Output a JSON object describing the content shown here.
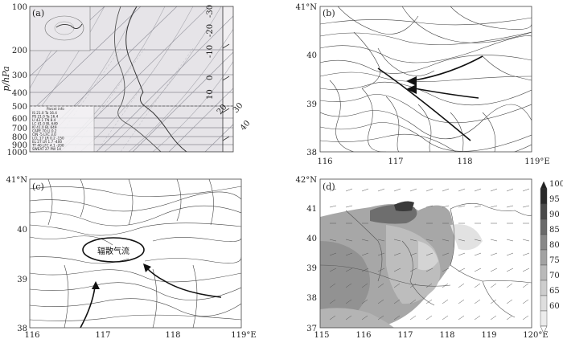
{
  "panels": {
    "a": {
      "label": "(a)",
      "ylabel": "p/hPa",
      "pressure_ticks": [
        "100",
        "200",
        "300",
        "400",
        "500",
        "600",
        "700",
        "800",
        "900",
        "1000"
      ],
      "temp_ticks": [
        "-30",
        "-20",
        "-10",
        "0",
        "10",
        "20",
        "30",
        "40"
      ],
      "parcel_text_lines": [
        "Parcel info",
        "IS  21.0 Ta 16.4",
        "PS  21.0 Ta 16.4",
        "LI  42.1 TN 8.4",
        "LC  41.0 BL 649",
        "KI  41.0 BL 649",
        "CAPE 70 LI 0.2",
        "CIN  -5 LFC 3.0",
        "LCL 17 LR 0.2 -150",
        "EL 27 LR 1.7 -400",
        "TT 40 LFC 4.1 -200",
        "SWEAT 27 PW 14"
      ]
    },
    "b": {
      "label": "(b)",
      "lat_ticks": [
        "41°N",
        "40",
        "39",
        "38"
      ],
      "lon_ticks": [
        "116",
        "117",
        "118",
        "119°E"
      ]
    },
    "c": {
      "label": "(c)",
      "lat_ticks": [
        "41°N",
        "40",
        "39",
        "38"
      ],
      "lon_ticks": [
        "116",
        "117",
        "118",
        "119°E"
      ],
      "annotation": "辐散气流"
    },
    "d": {
      "label": "(d)",
      "lat_ticks": [
        "42°N",
        "41",
        "40",
        "39",
        "38",
        "37"
      ],
      "lon_ticks": [
        "115",
        "116",
        "117",
        "118",
        "119",
        "120°E"
      ],
      "colorbar_ticks": [
        "100",
        "95",
        "90",
        "85",
        "80",
        "75",
        "70",
        "65",
        "60"
      ],
      "colorbar_colors": [
        "#2a2a2a",
        "#4a4a4a",
        "#6a6a6a",
        "#888888",
        "#a2a2a2",
        "#b9b9b9",
        "#cdcdcd",
        "#dedede",
        "#ececec"
      ]
    }
  }
}
